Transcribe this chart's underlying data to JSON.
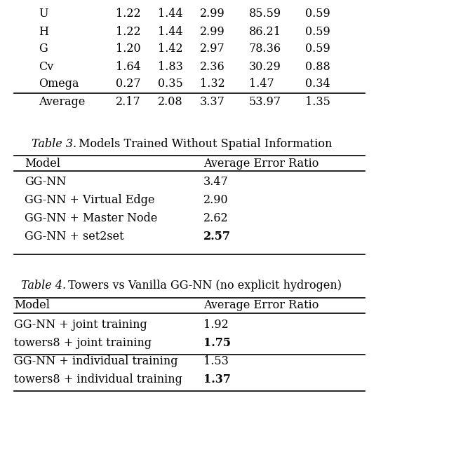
{
  "top_table": {
    "rows": [
      [
        "U",
        "1.22",
        "1.44",
        "2.99",
        "85.59",
        "0.59"
      ],
      [
        "H",
        "1.22",
        "1.44",
        "2.99",
        "86.21",
        "0.59"
      ],
      [
        "G",
        "1.20",
        "1.42",
        "2.97",
        "78.36",
        "0.59"
      ],
      [
        "Cv",
        "1.64",
        "1.83",
        "2.36",
        "30.29",
        "0.88"
      ],
      [
        "Omega",
        "0.27",
        "0.35",
        "1.32",
        "1.47",
        "0.34"
      ],
      [
        "Average",
        "2.17",
        "2.08",
        "3.37",
        "53.97",
        "1.35"
      ]
    ],
    "average_row_index": 5
  },
  "table3": {
    "title_italic": "Table 3.",
    "title_rest": " Models Trained Without Spatial Information",
    "col1_header": "Model",
    "col2_header": "Average Error Ratio",
    "rows": [
      [
        "GG-NN",
        "3.47",
        false
      ],
      [
        "GG-NN + Virtual Edge",
        "2.90",
        false
      ],
      [
        "GG-NN + Master Node",
        "2.62",
        false
      ],
      [
        "GG-NN + set2set",
        "2.57",
        true
      ]
    ]
  },
  "table4": {
    "title_italic": "Table 4.",
    "title_rest": " Towers vs Vanilla GG-NN (no explicit hydrogen)",
    "col1_header": "Model",
    "col2_header": "Average Error Ratio",
    "rows": [
      [
        "GG-NN + joint training",
        "1.92",
        false
      ],
      [
        "towers8 + joint training",
        "1.75",
        true
      ],
      [
        "GG-NN + individual training",
        "1.53",
        false
      ],
      [
        "towers8 + individual training",
        "1.37",
        true
      ]
    ],
    "mid_line_after": 1
  },
  "bg_color": "#ffffff",
  "font_size": 11.5,
  "font_family": "DejaVu Serif"
}
